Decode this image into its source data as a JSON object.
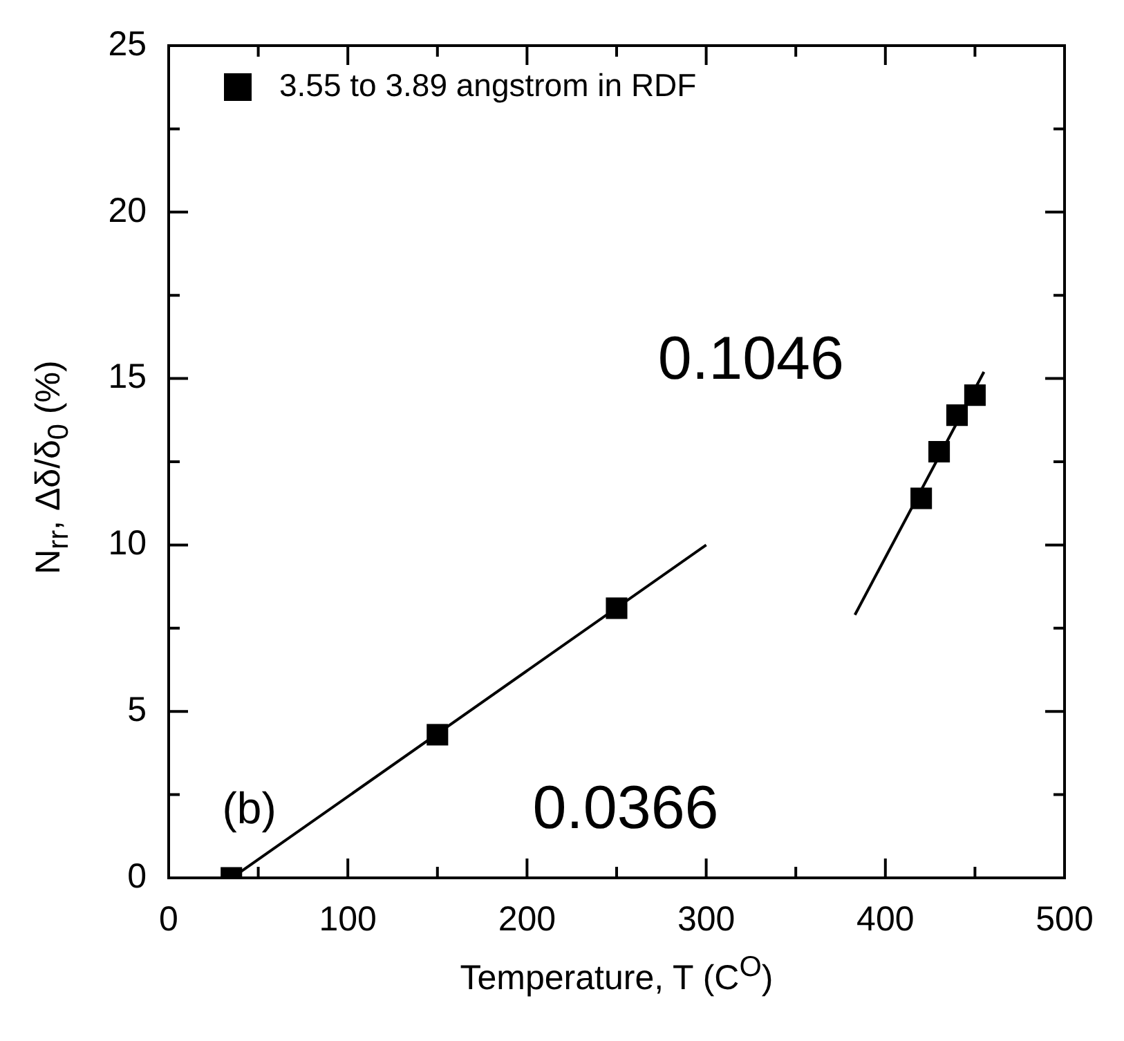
{
  "chart_data": {
    "type": "scatter",
    "xlabel": "Temperature, T (C$^{O}$)",
    "ylabel": "N$_{rr}$, Δδ/δ$_{0}$ (%)",
    "xlim": [
      0,
      500
    ],
    "xticks": [
      0,
      {
        "value": 50,
        "label": null
      },
      100,
      {
        "value": 150,
        "label": null
      },
      200,
      {
        "value": 250,
        "label": null
      },
      300,
      {
        "value": 350,
        "label": null
      },
      400,
      {
        "value": 450,
        "label": null
      },
      500
    ],
    "ylim": [
      0,
      25
    ],
    "yticks": [
      0,
      {
        "value": 2.5,
        "label": null
      },
      5,
      {
        "value": 7.5,
        "label": null
      },
      10,
      {
        "value": 12.5,
        "label": null
      },
      15,
      {
        "value": 17.5,
        "label": null
      },
      20,
      {
        "value": 22.5,
        "label": null
      },
      25
    ],
    "grid": false,
    "legend": "top left",
    "annotations": [
      "(b)",
      "0.0366",
      "0.1046"
    ],
    "series": [
      {
        "name": "3.55 to 3.89 angstrom in RDF",
        "marker": "square",
        "color": "#000000",
        "x": [
          35,
          150,
          250,
          420,
          430,
          440,
          450
        ],
        "values": [
          0,
          4.3,
          8.1,
          11.4,
          12.8,
          13.9,
          14.5
        ]
      },
      {
        "type": "line",
        "marker": "none",
        "color": "#000000",
        "x": [
          38,
          300
        ],
        "values": [
          0.1,
          10
        ]
      },
      {
        "type": "line",
        "marker": "none",
        "color": "#000000",
        "x": [
          383,
          455
        ],
        "values": [
          7.9,
          15.2
        ]
      }
    ]
  }
}
